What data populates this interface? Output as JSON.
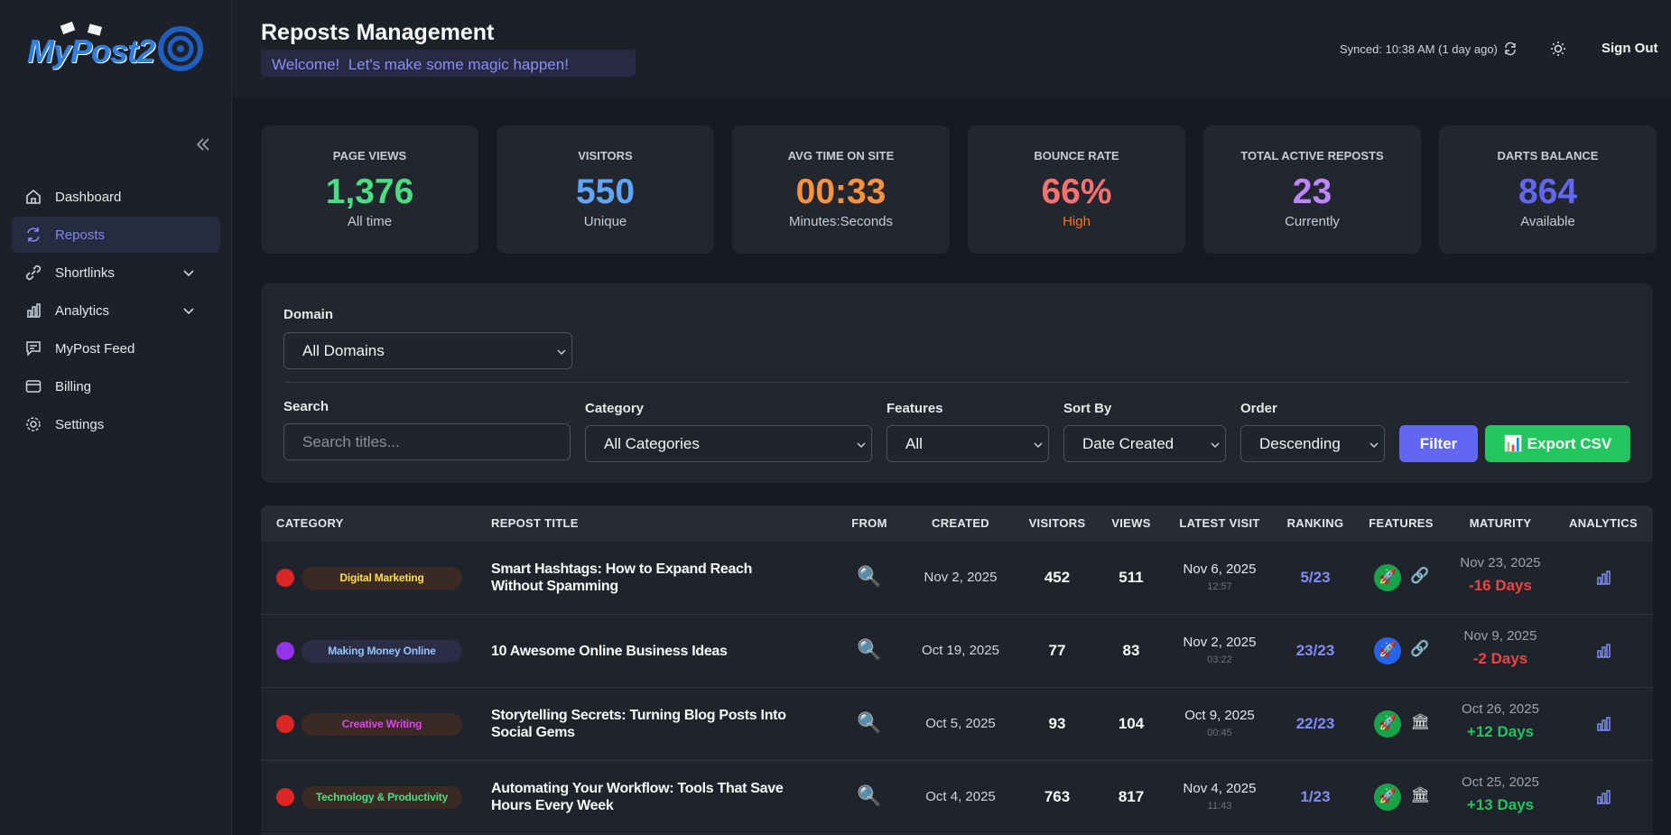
{
  "logo": "MyPost2",
  "sidebar": {
    "nav": [
      "Dashboard",
      "Reposts",
      "Shortlinks",
      "Analytics",
      "MyPost Feed",
      "Billing",
      "Settings"
    ]
  },
  "header": {
    "title": "Reposts Management",
    "welcome": "Welcome!  Let's make some magic happen!",
    "synced": "Synced: 10:38 AM (1 day ago)",
    "sign_out": "Sign Out"
  },
  "stats": [
    {
      "label": "PAGE VIEWS",
      "value": "1,376",
      "sub": "All time",
      "color": "#4ade80"
    },
    {
      "label": "VISITORS",
      "value": "550",
      "sub": "Unique",
      "color": "#60a5fa"
    },
    {
      "label": "AVG TIME ON SITE",
      "value": "00:33",
      "sub": "Minutes:Seconds",
      "color": "#fb923c"
    },
    {
      "label": "BOUNCE RATE",
      "value": "66%",
      "sub": "High",
      "color": "#f87171",
      "sub_color": "#f97316"
    },
    {
      "label": "TOTAL ACTIVE REPOSTS",
      "value": "23",
      "sub": "Currently",
      "color": "#c084fc"
    },
    {
      "label": "DARTS BALANCE",
      "value": "864",
      "sub": "Available",
      "color": "#6366f1"
    }
  ],
  "filters": {
    "domain": {
      "label": "Domain",
      "value": "All Domains"
    },
    "search": {
      "label": "Search",
      "placeholder": "Search titles..."
    },
    "category": {
      "label": "Category",
      "value": "All Categories"
    },
    "features": {
      "label": "Features",
      "value": "All"
    },
    "sort_by": {
      "label": "Sort By",
      "value": "Date Created"
    },
    "order": {
      "label": "Order",
      "value": "Descending"
    },
    "filter_button": "Filter",
    "export_button": "📊 Export CSV"
  },
  "table": {
    "columns": [
      "CATEGORY",
      "REPOST TITLE",
      "FROM",
      "CREATED",
      "VISITORS",
      "VIEWS",
      "LATEST VISIT",
      "RANKING",
      "FEATURES",
      "MATURITY",
      "ANALYTICS"
    ],
    "rows": [
      {
        "dot": "#dc2626",
        "category": "Digital Marketing",
        "tag_color": "#fde047",
        "tag_bg": "#3b2a24",
        "title": "Smart Hashtags: How to Expand Reach Without Spamming",
        "from": "🔍",
        "created": "Nov 2, 2025",
        "visitors": 452,
        "views": 511,
        "latest_date": "Nov 6, 2025",
        "latest_time": "12:57",
        "ranking": "5/23",
        "features": [
          {
            "icon": "🚀",
            "color": "#16a34a"
          },
          {
            "icon": "🔗"
          }
        ],
        "maturity_date": "Nov 23, 2025",
        "maturity_days": "-16 Days",
        "maturity_color": "#ef4444"
      },
      {
        "dot": "#9333ea",
        "category": "Making Money Online",
        "tag_color": "#93c5fd",
        "tag_bg": "#2a2d45",
        "title": "10 Awesome Online Business Ideas",
        "from": "🔍",
        "created": "Oct 19, 2025",
        "visitors": 77,
        "views": 83,
        "latest_date": "Nov 2, 2025",
        "latest_time": "03:22",
        "ranking": "23/23",
        "features": [
          {
            "icon": "🚀",
            "color": "#2563eb"
          },
          {
            "icon": "🔗"
          }
        ],
        "maturity_date": "Nov 9, 2025",
        "maturity_days": "-2 Days",
        "maturity_color": "#ef4444"
      },
      {
        "dot": "#dc2626",
        "category": "Creative Writing",
        "tag_color": "#d946ef",
        "tag_bg": "#3b2a24",
        "title": "Storytelling Secrets: Turning Blog Posts Into Social Gems",
        "from": "🔍",
        "created": "Oct 5, 2025",
        "visitors": 93,
        "views": 104,
        "latest_date": "Oct 9, 2025",
        "latest_time": "00:45",
        "ranking": "22/23",
        "features": [
          {
            "icon": "🚀",
            "color": "#16a34a"
          },
          {
            "icon": "🏛"
          }
        ],
        "maturity_date": "Oct 26, 2025",
        "maturity_days": "+12 Days",
        "maturity_color": "#22c55e"
      },
      {
        "dot": "#dc2626",
        "category": "Technology & Productivity",
        "tag_color": "#4ade80",
        "tag_bg": "#3b2a24",
        "title": "Automating Your Workflow: Tools That Save Hours Every Week",
        "from": "🔍",
        "created": "Oct 4, 2025",
        "visitors": 763,
        "views": 817,
        "latest_date": "Nov 4, 2025",
        "latest_time": "11:43",
        "ranking": "1/23",
        "features": [
          {
            "icon": "🚀",
            "color": "#16a34a"
          },
          {
            "icon": "🏛"
          }
        ],
        "maturity_date": "Oct 25, 2025",
        "maturity_days": "+13 Days",
        "maturity_color": "#22c55e"
      }
    ]
  }
}
